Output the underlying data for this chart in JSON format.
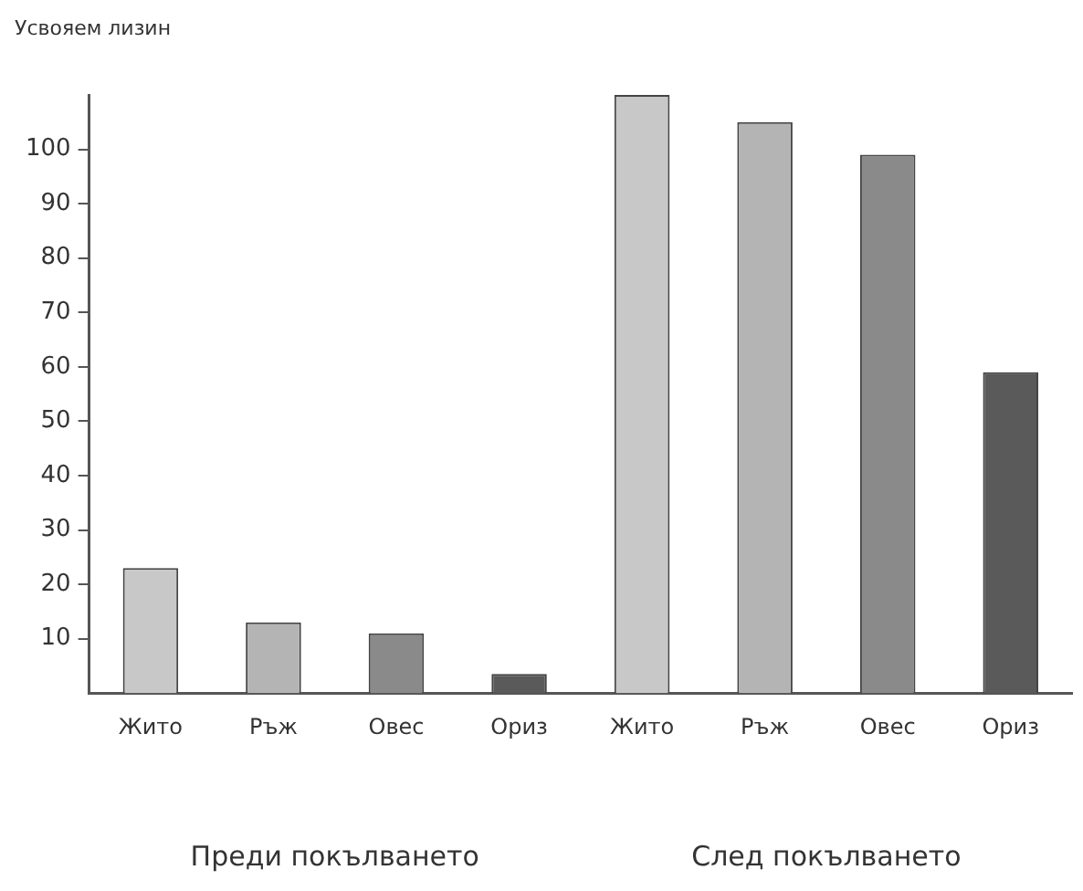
{
  "chart_data": {
    "type": "bar",
    "ylabel": "Усвояем лизин",
    "categories": [
      "Жито",
      "Ръж",
      "Овес",
      "Ориз",
      "Жито",
      "Ръж",
      "Овес",
      "Ориз"
    ],
    "values": [
      23,
      13,
      11,
      3.5,
      110,
      105,
      99,
      59
    ],
    "colors": [
      "#c8c8c8",
      "#b4b4b4",
      "#8a8a8a",
      "#5a5a5a",
      "#c8c8c8",
      "#b4b4b4",
      "#8a8a8a",
      "#5a5a5a"
    ],
    "ylim": [
      0,
      110
    ],
    "yticks": [
      10,
      20,
      30,
      40,
      50,
      60,
      70,
      80,
      90,
      100
    ],
    "annotations": [
      "Преди покълването",
      "След покълването"
    ],
    "grid": false,
    "legend": false
  }
}
